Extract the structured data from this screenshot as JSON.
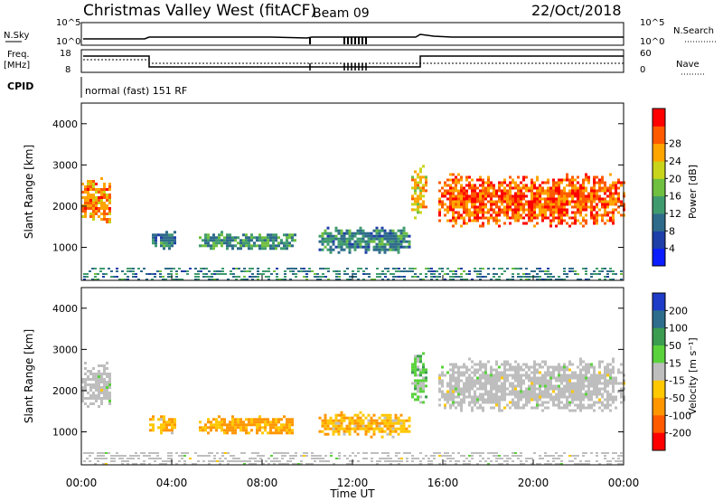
{
  "header": {
    "station": "Christmas Valley West (fitACF)",
    "beam": "Beam 09",
    "date": "22/Oct/2018"
  },
  "strip_labels": {
    "nsky": "N.Sky",
    "nsearch": "N.Search",
    "freq_line1": "Freq.",
    "freq_line2": "[MHz]",
    "nave": "Nave",
    "cpid": "CPID",
    "cpid_value": "normal (fast) 151 RF"
  },
  "noise_ticks_left": [
    "10^5",
    "10^0"
  ],
  "noise_ticks_right": [
    "10^5",
    "10^0"
  ],
  "freq_ticks": [
    "18",
    "8"
  ],
  "nave_ticks": [
    "60",
    "0"
  ],
  "colors": {
    "frame": "#000000",
    "ground_scatter": "#bebebe"
  },
  "chart_data": [
    {
      "type": "heatmap",
      "panel": "power",
      "ylabel": "Slant Range [km]",
      "yticks": [
        "1000",
        "2000",
        "3000",
        "4000"
      ],
      "ylim": [
        200,
        4500
      ],
      "xlim": [
        "00:00",
        "24:00"
      ],
      "colorbar_label": "Power [dB]",
      "colorbar_ticks": [
        "4",
        "8",
        "12",
        "16",
        "20",
        "24",
        "28"
      ],
      "colorbar_colors": [
        "#0b1dff",
        "#1e3ea8",
        "#2e6b8a",
        "#3f9b6e",
        "#6fbf40",
        "#c8d41a",
        "#ffa500",
        "#ff5a00",
        "#ff0000"
      ],
      "regions": [
        {
          "t": [
            0.0,
            1.3
          ],
          "r": [
            1600,
            2700
          ],
          "level": 26
        },
        {
          "t": [
            3.0,
            4.2
          ],
          "r": [
            1000,
            1400
          ],
          "level": 10
        },
        {
          "t": [
            5.2,
            9.5
          ],
          "r": [
            950,
            1400
          ],
          "level": 12
        },
        {
          "t": [
            10.5,
            14.5
          ],
          "r": [
            900,
            1500
          ],
          "level": 10
        },
        {
          "t": [
            14.6,
            15.2
          ],
          "r": [
            1700,
            3000
          ],
          "level": 22
        },
        {
          "t": [
            15.8,
            24.0
          ],
          "r": [
            1500,
            2800
          ],
          "level": 28
        }
      ]
    },
    {
      "type": "heatmap",
      "panel": "velocity",
      "ylabel": "Slant Range [km]",
      "yticks": [
        "1000",
        "2000",
        "3000",
        "4000"
      ],
      "ylim": [
        200,
        4500
      ],
      "xlim": [
        "00:00",
        "24:00"
      ],
      "xticks": [
        "00:00",
        "04:00",
        "08:00",
        "12:00",
        "16:00",
        "20:00",
        "00:00"
      ],
      "xlabel": "Time UT",
      "colorbar_label": "Velocity [m s⁻¹]",
      "colorbar_ticks": [
        "200",
        "100",
        "50",
        "15",
        "-15",
        "-50",
        "-100",
        "-200"
      ],
      "colorbar_colors": [
        "#1e3cc8",
        "#2e6e8c",
        "#3c9c50",
        "#5ad23c",
        "#bebebe",
        "#ffc800",
        "#ff9600",
        "#ff5a00",
        "#ff0000"
      ],
      "regions": [
        {
          "t": [
            0.0,
            1.3
          ],
          "r": [
            1600,
            2700
          ],
          "velocity": 0
        },
        {
          "t": [
            3.0,
            4.2
          ],
          "r": [
            1000,
            1400
          ],
          "velocity": -40
        },
        {
          "t": [
            5.2,
            9.5
          ],
          "r": [
            950,
            1400
          ],
          "velocity": -60
        },
        {
          "t": [
            10.5,
            14.5
          ],
          "r": [
            900,
            1500
          ],
          "velocity": -40
        },
        {
          "t": [
            14.6,
            15.2
          ],
          "r": [
            1700,
            3000
          ],
          "velocity": 30
        },
        {
          "t": [
            15.8,
            24.0
          ],
          "r": [
            1500,
            2800
          ],
          "velocity": 0
        }
      ]
    }
  ]
}
